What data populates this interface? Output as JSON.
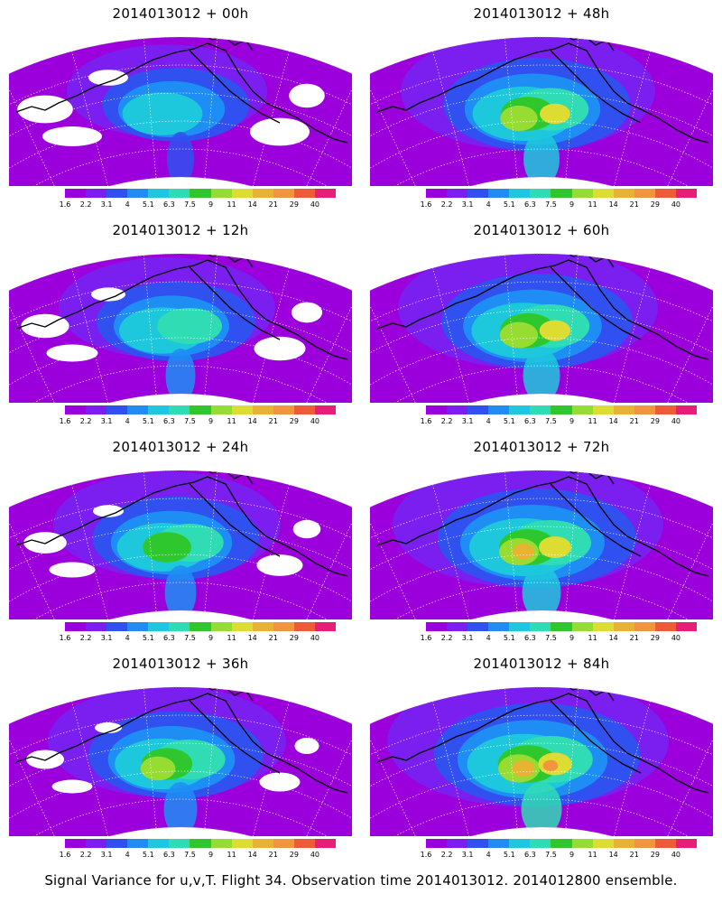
{
  "panels": [
    {
      "title": "2014013012 + 00h",
      "col": 0,
      "row": 0,
      "intensity": 0.1
    },
    {
      "title": "2014013012 + 48h",
      "col": 1,
      "row": 0,
      "intensity": 0.6
    },
    {
      "title": "2014013012 + 12h",
      "col": 0,
      "row": 1,
      "intensity": 0.25
    },
    {
      "title": "2014013012 + 60h",
      "col": 1,
      "row": 1,
      "intensity": 0.65
    },
    {
      "title": "2014013012 + 24h",
      "col": 0,
      "row": 2,
      "intensity": 0.35
    },
    {
      "title": "2014013012 + 72h",
      "col": 1,
      "row": 2,
      "intensity": 0.75
    },
    {
      "title": "2014013012 + 36h",
      "col": 0,
      "row": 3,
      "intensity": 0.45
    },
    {
      "title": "2014013012 + 84h",
      "col": 1,
      "row": 3,
      "intensity": 0.85
    }
  ],
  "colorbar": {
    "labels": [
      "1.6",
      "2.2",
      "3.1",
      "4",
      "5.1",
      "6.3",
      "7.5",
      "9",
      "11",
      "14",
      "21",
      "29",
      "40"
    ],
    "colors": [
      "#9b00dc",
      "#7a1ff0",
      "#3050f0",
      "#1e8ef5",
      "#1ec8dc",
      "#30dcb4",
      "#2ec82e",
      "#96dc32",
      "#dcdc32",
      "#e6b432",
      "#f0963c",
      "#f05a3c",
      "#e61e78"
    ]
  },
  "caption": "Signal Variance for u,v,T. Flight 34. Observation time 2014013012. 2014012800 ensemble."
}
